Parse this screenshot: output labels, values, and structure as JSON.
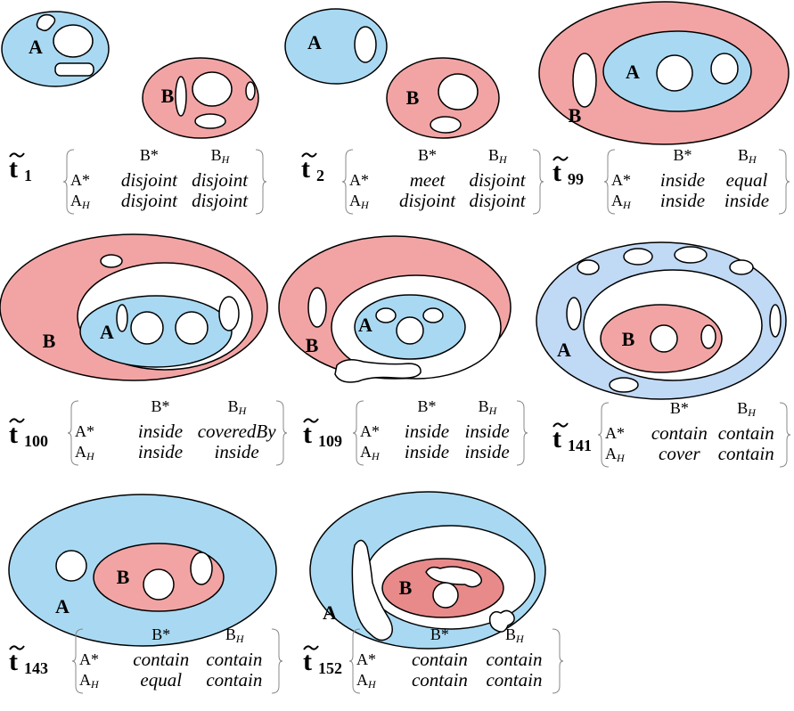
{
  "symbol": "t",
  "headers": {
    "b_star": "B*",
    "b_h": "B",
    "a_star": "A*",
    "a_h": "A",
    "sub": "H"
  },
  "panels": [
    {
      "index": "1",
      "regions": [
        "A",
        "B"
      ],
      "cells": [
        [
          "disjoint",
          "disjoint"
        ],
        [
          "disjoint",
          "disjoint"
        ]
      ]
    },
    {
      "index": "2",
      "regions": [
        "A",
        "B"
      ],
      "cells": [
        [
          "meet",
          "disjoint"
        ],
        [
          "disjoint",
          "disjoint"
        ]
      ]
    },
    {
      "index": "99",
      "regions": [
        "A",
        "B"
      ],
      "cells": [
        [
          "inside",
          "equal"
        ],
        [
          "inside",
          "inside"
        ]
      ]
    },
    {
      "index": "100",
      "regions": [
        "A",
        "B"
      ],
      "cells": [
        [
          "inside",
          "coveredBy"
        ],
        [
          "inside",
          "inside"
        ]
      ]
    },
    {
      "index": "109",
      "regions": [
        "A",
        "B"
      ],
      "cells": [
        [
          "inside",
          "inside"
        ],
        [
          "inside",
          "inside"
        ]
      ]
    },
    {
      "index": "141",
      "regions": [
        "A",
        "B"
      ],
      "cells": [
        [
          "contain",
          "contain"
        ],
        [
          "cover",
          "contain"
        ]
      ]
    },
    {
      "index": "143",
      "regions": [
        "A",
        "B"
      ],
      "cells": [
        [
          "contain",
          "contain"
        ],
        [
          "equal",
          "contain"
        ]
      ]
    },
    {
      "index": "152",
      "regions": [
        "A",
        "B"
      ],
      "cells": [
        [
          "contain",
          "contain"
        ],
        [
          "contain",
          "contain"
        ]
      ]
    }
  ]
}
